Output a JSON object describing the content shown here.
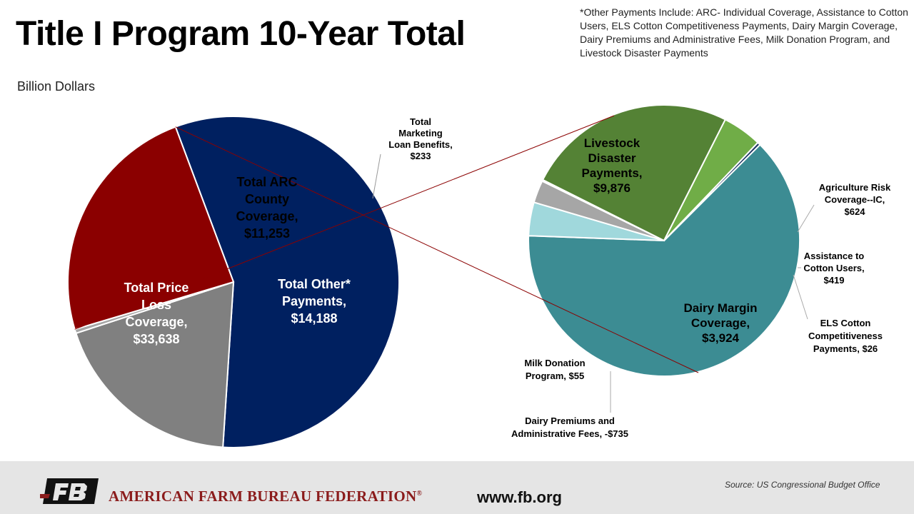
{
  "title": "Title I Program 10-Year Total",
  "footnote": "*Other Payments Include: ARC- Individual Coverage, Assistance to Cotton Users,  ELS Cotton Competitiveness Payments, Dairy Margin Coverage,  Dairy Premiums and Administrative Fees, Milk Donation Program, and Livestock Disaster Payments",
  "unit": "Billion Dollars",
  "chart_data": [
    {
      "type": "pie",
      "slices": [
        {
          "label": [
            "Total Price",
            "Loss",
            "Coverage,",
            "$33,638"
          ],
          "value": 33638,
          "color": "#002060"
        },
        {
          "label": [
            "Total ARC",
            "County",
            "Coverage,",
            "$11,253"
          ],
          "value": 11253,
          "color": "#808080"
        },
        {
          "label": [
            "Total",
            "Marketing",
            "Loan Benefits,",
            "$233"
          ],
          "value": 233,
          "color": "#a6a6a6"
        },
        {
          "label": [
            "Total Other*",
            "Payments,",
            "$14,188"
          ],
          "value": 14188,
          "color": "#8b0000"
        }
      ]
    },
    {
      "type": "pie",
      "slices": [
        {
          "label": [
            "Livestock",
            "Disaster",
            "Payments,",
            "$9,876"
          ],
          "value": 9876,
          "color": "#3c8c93"
        },
        {
          "label": [
            "Agriculture Risk",
            "Coverage--IC,",
            "$624"
          ],
          "value": 624,
          "color": "#a0d8dc"
        },
        {
          "label": [
            "Assistance to",
            "Cotton Users,",
            "$419"
          ],
          "value": 419,
          "color": "#a6a6a6"
        },
        {
          "label": [
            "ELS Cotton",
            "Competitiveness",
            "Payments, $26"
          ],
          "value": 26,
          "color": "#d9d9d9"
        },
        {
          "label": [
            "Dairy Margin",
            "Coverage,",
            "$3,924"
          ],
          "value": 3924,
          "color": "#548235"
        },
        {
          "label": [
            "Dairy Premiums and",
            "Administrative Fees, -$735"
          ],
          "value": -735,
          "color": "#70ad47"
        },
        {
          "label": [
            "Milk Donation",
            "Program, $55"
          ],
          "value": 55,
          "color": "#1f3864"
        }
      ]
    }
  ],
  "footer": {
    "org_name": "AMERICAN FARM BUREAU FEDERATION",
    "org_mark": "®",
    "logo_text": "FB",
    "website": "www.fb.org",
    "source": "Source:  US Congressional  Budget Office"
  }
}
